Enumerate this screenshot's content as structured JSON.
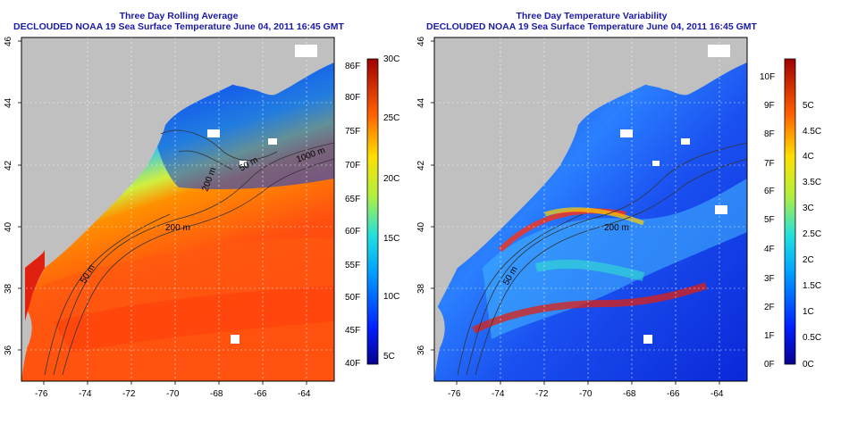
{
  "left_panel": {
    "title_line1": "Three Day Rolling Average",
    "title_line2": "DECLOUDED NOAA 19 Sea Surface Temperature June 04, 2011 16:45 GMT",
    "colorbar_f": [
      "86F",
      "80F",
      "75F",
      "70F",
      "65F",
      "60F",
      "55F",
      "50F",
      "45F",
      "40F"
    ],
    "colorbar_c": [
      "30C",
      "25C",
      "20C",
      "15C",
      "10C",
      "5C"
    ],
    "contour_labels": [
      "200 m",
      "50 m",
      "200 m",
      "1000 m",
      "50 m"
    ]
  },
  "right_panel": {
    "title_line1": "Three Day Temperature Variability",
    "title_line2": "DECLOUDED NOAA 19 Sea Surface Temperature June 04, 2011 16:45 GMT",
    "colorbar_f": [
      "10F",
      "9F",
      "8F",
      "7F",
      "6F",
      "5F",
      "4F",
      "3F",
      "2F",
      "1F",
      "0F"
    ],
    "colorbar_c": [
      "5C",
      "4.5C",
      "4C",
      "3.5C",
      "3C",
      "2.5C",
      "2C",
      "1.5C",
      "1C",
      "0.5C",
      "0C"
    ],
    "contour_labels": [
      "200 m",
      "50 m"
    ]
  },
  "axes": {
    "lat_ticks": [
      "46",
      "44",
      "42",
      "40",
      "38",
      "36"
    ],
    "lon_ticks": [
      "-76",
      "-74",
      "-72",
      "-70",
      "-68",
      "-66",
      "-64"
    ]
  },
  "colors": {
    "land": "#c0c0c0",
    "title": "#1a1aa6"
  }
}
